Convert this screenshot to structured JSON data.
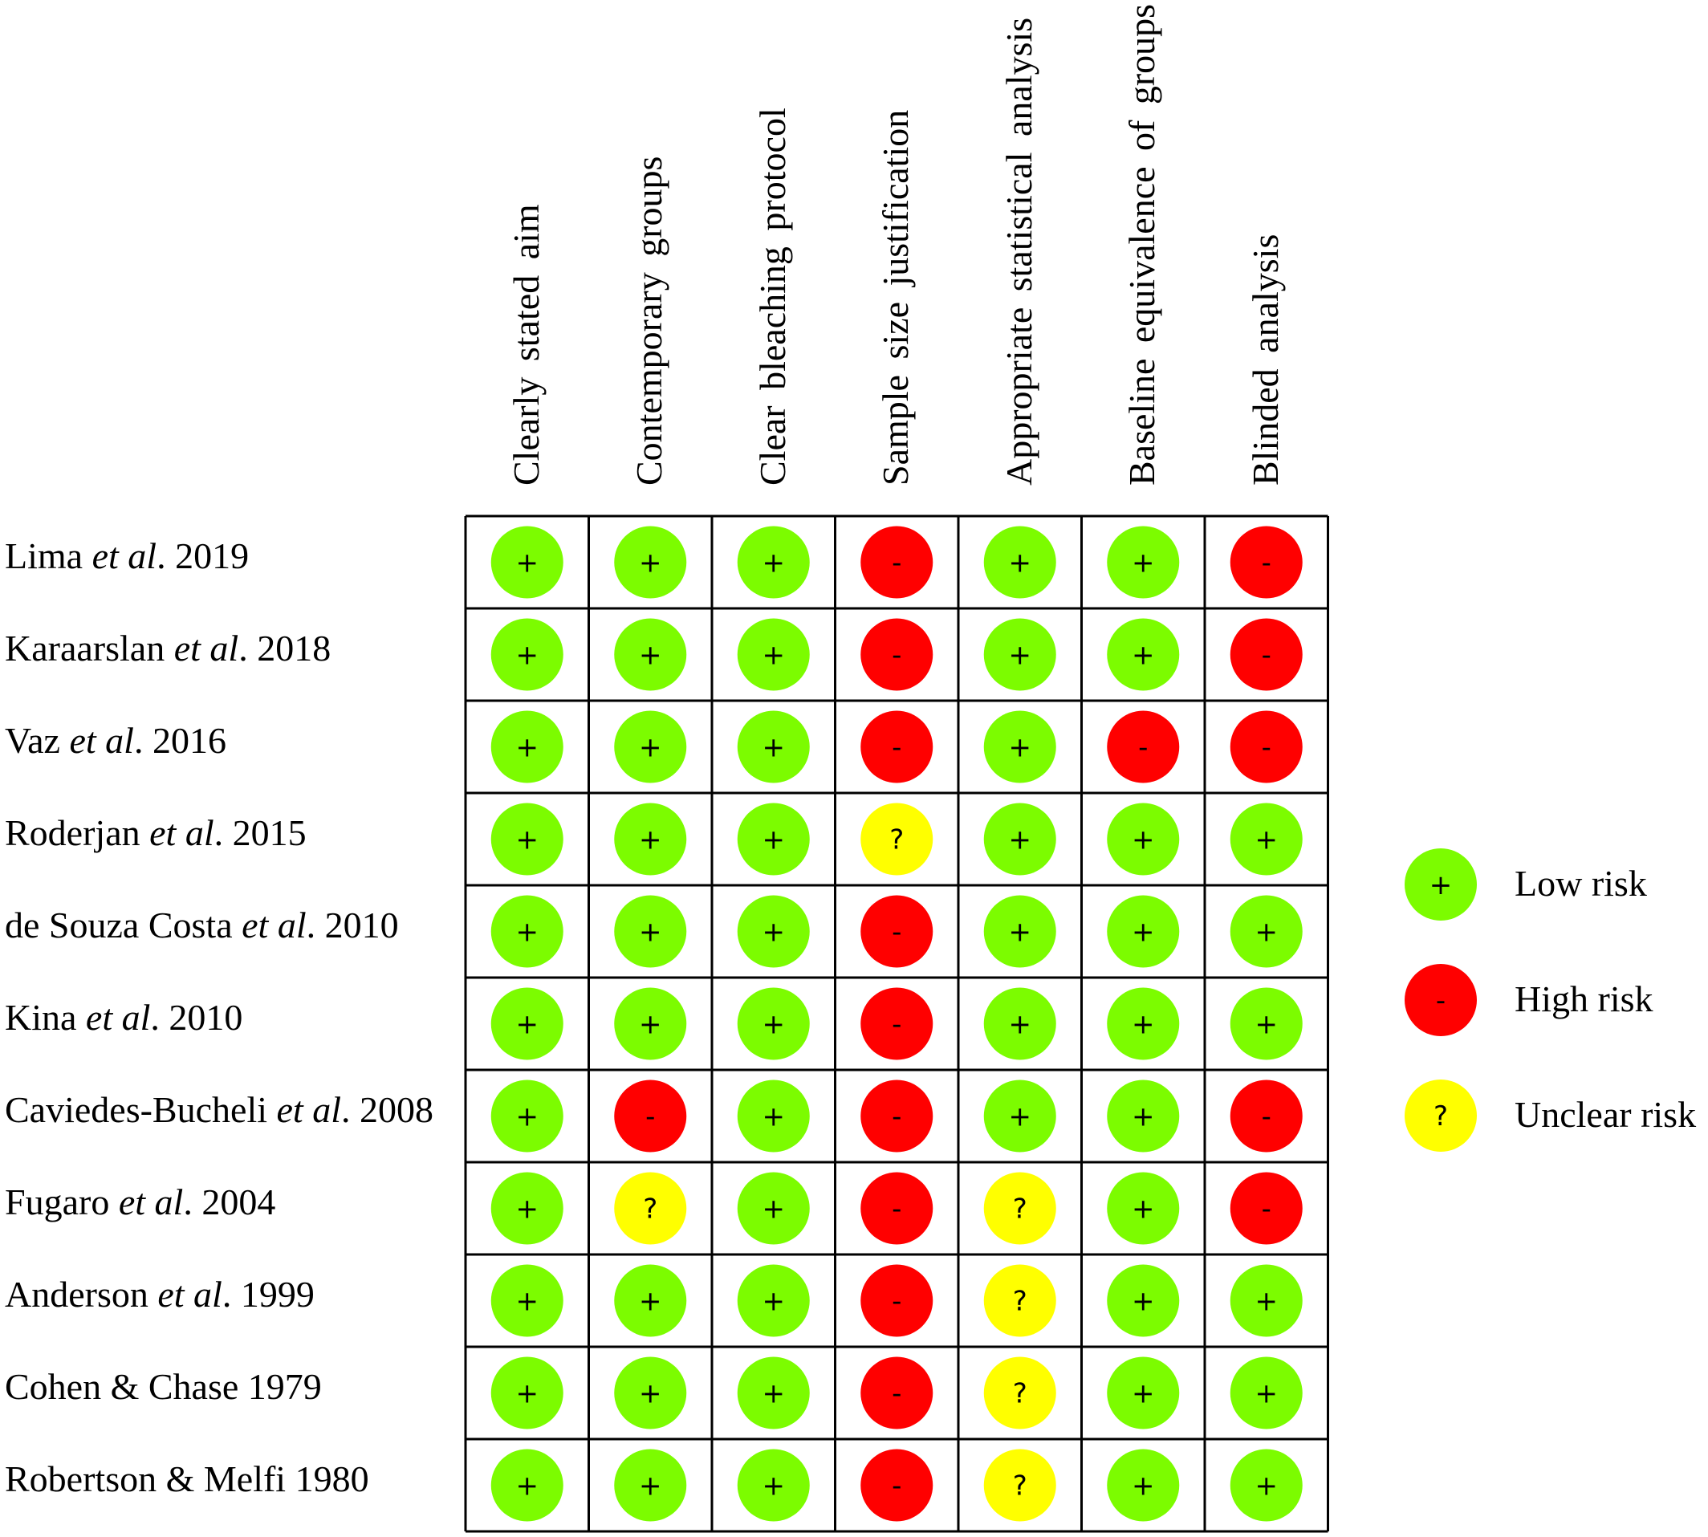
{
  "chart_data": {
    "type": "table",
    "columns": [
      "Clearly stated aim",
      "Contemporary groups",
      "Clear bleaching protocol",
      "Sample size justification",
      "Appropriate statistical analysis",
      "Baseline equivalence of groups",
      "Blinded analysis"
    ],
    "rows": [
      {
        "pre": "Lima ",
        "etal": "et al",
        "post": ". 2019",
        "values": [
          "+",
          "+",
          "+",
          "-",
          "+",
          "+",
          "-"
        ]
      },
      {
        "pre": "Karaarslan ",
        "etal": "et al",
        "post": ". 2018",
        "values": [
          "+",
          "+",
          "+",
          "-",
          "+",
          "+",
          "-"
        ]
      },
      {
        "pre": "Vaz ",
        "etal": "et al",
        "post": ". 2016",
        "values": [
          "+",
          "+",
          "+",
          "-",
          "+",
          "-",
          "-"
        ]
      },
      {
        "pre": "Roderjan ",
        "etal": "et al",
        "post": ". 2015",
        "values": [
          "+",
          "+",
          "+",
          "?",
          "+",
          "+",
          "+"
        ]
      },
      {
        "pre": "de Souza Costa ",
        "etal": "et al",
        "post": ". 2010",
        "values": [
          "+",
          "+",
          "+",
          "-",
          "+",
          "+",
          "+"
        ]
      },
      {
        "pre": "Kina ",
        "etal": "et al",
        "post": ". 2010",
        "values": [
          "+",
          "+",
          "+",
          "-",
          "+",
          "+",
          "+"
        ]
      },
      {
        "pre": "Caviedes-Bucheli ",
        "etal": "et al",
        "post": ". 2008",
        "values": [
          "+",
          "-",
          "+",
          "-",
          "+",
          "+",
          "-"
        ]
      },
      {
        "pre": "Fugaro ",
        "etal": "et al",
        "post": ". 2004",
        "values": [
          "+",
          "?",
          "+",
          "-",
          "?",
          "+",
          "-"
        ]
      },
      {
        "pre": "Anderson ",
        "etal": "et al",
        "post": ". 1999",
        "values": [
          "+",
          "+",
          "+",
          "-",
          "?",
          "+",
          "+"
        ]
      },
      {
        "pre": "Cohen & Chase 1979",
        "etal": "",
        "post": "",
        "values": [
          "+",
          "+",
          "+",
          "-",
          "?",
          "+",
          "+"
        ]
      },
      {
        "pre": "Robertson & Melfi 1980",
        "etal": "",
        "post": "",
        "values": [
          "+",
          "+",
          "+",
          "-",
          "?",
          "+",
          "+"
        ]
      }
    ],
    "legend": [
      {
        "symbol": "+",
        "label": "Low risk",
        "color": "#7cfc00"
      },
      {
        "symbol": "-",
        "label": "High risk",
        "color": "#ff0000"
      },
      {
        "symbol": "?",
        "label": "Unclear risk",
        "color": "#ffff00"
      }
    ],
    "colors": {
      "+": "#7cfc00",
      "-": "#ff0000",
      "?": "#ffff00"
    },
    "legend_position": "right"
  }
}
